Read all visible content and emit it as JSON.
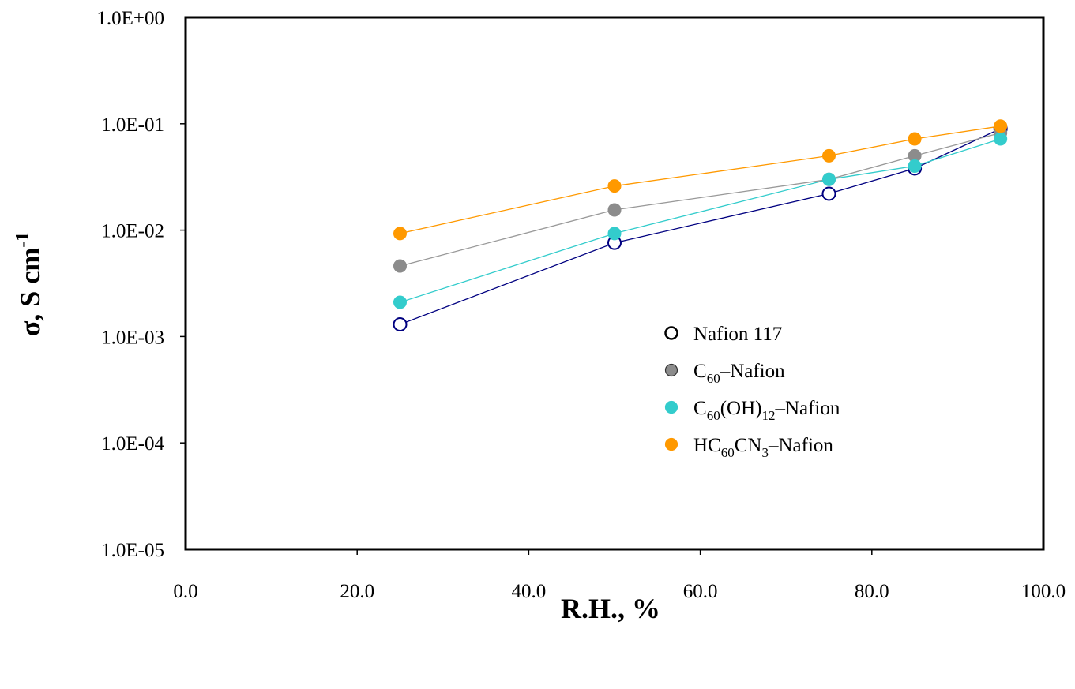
{
  "chart_data": {
    "type": "scatter",
    "title": "",
    "xlabel": "R.H., %",
    "ylabel": {
      "main": "σ, S cm",
      "superscript": "-1"
    },
    "xlim": [
      0,
      100
    ],
    "ylim": [
      1e-05,
      1
    ],
    "yscale": "log",
    "x_ticks": [
      0,
      20,
      40,
      60,
      80,
      100
    ],
    "x_tick_labels": [
      "0.0",
      "20.0",
      "40.0",
      "60.0",
      "80.0",
      "100.0"
    ],
    "y_ticks": [
      1e-05,
      0.0001,
      0.001,
      0.01,
      0.1,
      1
    ],
    "y_tick_labels": [
      "1.0E-05",
      "1.0E-04",
      "1.0E-03",
      "1.0E-02",
      "1.0E-01",
      "1.0E+00"
    ],
    "grid": false,
    "legend_position": "center-right",
    "series": [
      {
        "name": "Nafion 117",
        "legend_parts": [
          [
            "Nafion 117",
            "n"
          ]
        ],
        "color": "#000080",
        "line_color": "#000080",
        "marker_fill": "#ffffff",
        "x": [
          25,
          50,
          75,
          85,
          95
        ],
        "y": [
          0.0013,
          0.0076,
          0.022,
          0.038,
          0.09
        ]
      },
      {
        "name": "C60–Nafion",
        "legend_parts": [
          [
            "C",
            "n"
          ],
          [
            "60",
            "sub"
          ],
          [
            "–Nafion",
            "n"
          ]
        ],
        "color": "#8c8c8c",
        "line_color": "#999999",
        "marker_fill": "#8c8c8c",
        "x": [
          25,
          50,
          75,
          85,
          95
        ],
        "y": [
          0.0046,
          0.0155,
          0.03,
          0.05,
          0.082
        ]
      },
      {
        "name": "C60(OH)12–Nafion",
        "legend_parts": [
          [
            "C",
            "n"
          ],
          [
            "60",
            "sub"
          ],
          [
            "(OH)",
            "n"
          ],
          [
            "12",
            "sub"
          ],
          [
            "–Nafion",
            "n"
          ]
        ],
        "color": "#33cccc",
        "line_color": "#33cccc",
        "marker_fill": "#33cccc",
        "x": [
          25,
          50,
          75,
          85,
          95
        ],
        "y": [
          0.0021,
          0.0093,
          0.03,
          0.04,
          0.072
        ]
      },
      {
        "name": "HC60CN3–Nafion",
        "legend_parts": [
          [
            "HC",
            "n"
          ],
          [
            "60",
            "sub"
          ],
          [
            "CN",
            "n"
          ],
          [
            "3",
            "sub"
          ],
          [
            "–Nafion",
            "n"
          ]
        ],
        "color": "#ff9900",
        "line_color": "#ff9900",
        "marker_fill": "#ff9900",
        "x": [
          25,
          50,
          75,
          85,
          95
        ],
        "y": [
          0.0093,
          0.026,
          0.05,
          0.072,
          0.095
        ]
      }
    ]
  }
}
